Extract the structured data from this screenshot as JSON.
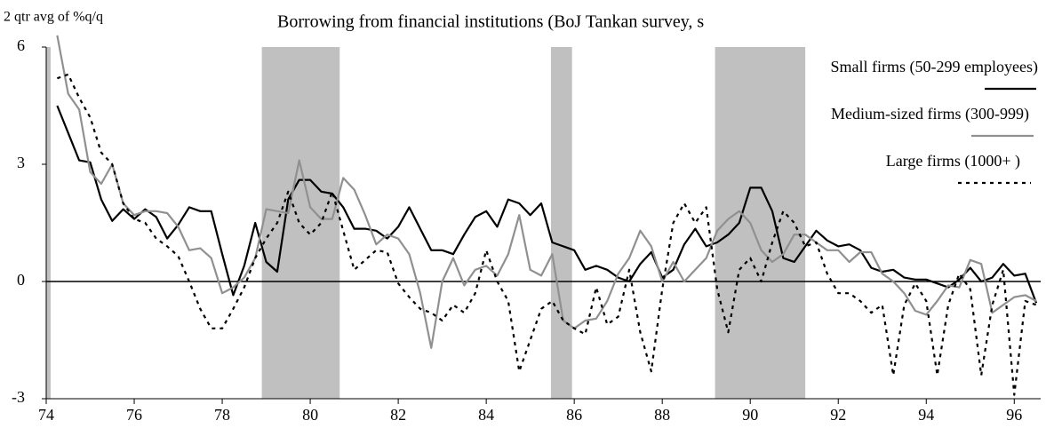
{
  "chart_data": {
    "type": "line",
    "title": "Borrowing from financial institutions (BoJ Tankan survey, s",
    "y_label": "2 qtr avg of %q/q",
    "x": [
      74.25,
      74.5,
      74.75,
      75,
      75.25,
      75.5,
      75.75,
      76,
      76.25,
      76.5,
      76.75,
      77,
      77.25,
      77.5,
      77.75,
      78,
      78.25,
      78.5,
      78.75,
      79,
      79.25,
      79.5,
      79.75,
      80,
      80.25,
      80.5,
      80.75,
      81,
      81.25,
      81.5,
      81.75,
      82,
      82.25,
      82.5,
      82.75,
      83,
      83.25,
      83.5,
      83.75,
      84,
      84.25,
      84.5,
      84.75,
      85,
      85.25,
      85.5,
      85.75,
      86,
      86.25,
      86.5,
      86.75,
      87,
      87.25,
      87.5,
      87.75,
      88,
      88.25,
      88.5,
      88.75,
      89,
      89.25,
      89.5,
      89.75,
      90,
      90.25,
      90.5,
      90.75,
      91,
      91.25,
      91.5,
      91.75,
      92,
      92.25,
      92.5,
      92.75,
      93,
      93.25,
      93.5,
      93.75,
      94,
      94.25,
      94.5,
      94.75,
      95,
      95.25,
      95.5,
      95.75,
      96,
      96.25,
      96.5
    ],
    "series": [
      {
        "name": "Small firms (50-299 employees)",
        "color": "#000000",
        "line_style": "solid",
        "values": [
          4.5,
          3.8,
          3.1,
          3.05,
          2.1,
          1.55,
          1.85,
          1.6,
          1.85,
          1.65,
          1.1,
          1.45,
          1.9,
          1.8,
          1.8,
          0.7,
          -0.35,
          0.4,
          1.5,
          0.5,
          0.25,
          2.1,
          2.6,
          2.6,
          2.3,
          2.25,
          1.9,
          1.35,
          1.35,
          1.3,
          1.1,
          1.4,
          1.9,
          1.35,
          0.8,
          0.8,
          0.7,
          1.2,
          1.65,
          1.8,
          1.4,
          2.1,
          2.0,
          1.7,
          2.0,
          1.0,
          0.9,
          0.8,
          0.3,
          0.4,
          0.3,
          0.1,
          0.0,
          0.45,
          0.75,
          0.1,
          0.3,
          0.95,
          1.35,
          0.9,
          1.0,
          1.2,
          1.5,
          2.4,
          2.4,
          1.8,
          0.6,
          0.5,
          0.9,
          1.3,
          1.05,
          0.9,
          0.95,
          0.8,
          0.35,
          0.25,
          0.3,
          0.1,
          0.05,
          0.05,
          -0.05,
          -0.15,
          0.05,
          0.35,
          0.0,
          0.1,
          0.45,
          0.15,
          0.2,
          -0.55
        ]
      },
      {
        "name": "Medium-sized firms (300-999)",
        "color": "#909090",
        "line_style": "solid",
        "values": [
          6.3,
          4.8,
          4.4,
          2.8,
          2.5,
          3.0,
          2.0,
          1.7,
          1.8,
          1.8,
          1.75,
          1.4,
          0.8,
          0.85,
          0.6,
          -0.3,
          -0.15,
          0.1,
          0.6,
          1.85,
          1.8,
          1.75,
          3.1,
          1.9,
          1.6,
          1.6,
          2.65,
          2.35,
          1.7,
          0.95,
          1.2,
          1.1,
          0.7,
          -0.3,
          -1.7,
          0.0,
          0.6,
          -0.1,
          0.3,
          0.4,
          0.15,
          0.7,
          1.7,
          0.3,
          0.15,
          0.7,
          -1.0,
          -1.2,
          -1.0,
          -0.95,
          -0.5,
          0.2,
          0.6,
          1.3,
          0.9,
          0.0,
          0.5,
          0.0,
          0.3,
          0.6,
          1.3,
          1.6,
          1.8,
          1.5,
          0.8,
          0.5,
          0.7,
          1.2,
          1.2,
          1.0,
          0.8,
          0.8,
          0.5,
          0.75,
          0.75,
          0.2,
          0.0,
          -0.3,
          -0.75,
          -0.85,
          -0.5,
          -0.1,
          -0.15,
          0.55,
          0.45,
          -0.8,
          -0.6,
          -0.4,
          -0.35,
          -0.5
        ]
      },
      {
        "name": "Large firms (1000+ )",
        "color": "#000000",
        "line_style": "dotted",
        "values": [
          5.2,
          5.3,
          4.7,
          4.2,
          3.3,
          3.0,
          2.0,
          1.6,
          1.5,
          1.1,
          0.9,
          0.65,
          0.0,
          -0.7,
          -1.2,
          -1.2,
          -0.7,
          -0.15,
          0.6,
          1.1,
          1.5,
          2.3,
          1.5,
          1.2,
          1.5,
          2.3,
          1.3,
          0.3,
          0.55,
          0.8,
          0.75,
          -0.05,
          -0.4,
          -0.7,
          -0.8,
          -1.0,
          -0.6,
          -0.8,
          -0.3,
          0.8,
          0.0,
          -0.5,
          -2.3,
          -1.5,
          -0.7,
          -0.5,
          -1.0,
          -1.2,
          -1.35,
          -0.15,
          -1.1,
          -0.9,
          0.3,
          -1.3,
          -2.3,
          -0.2,
          1.5,
          2.0,
          1.5,
          1.9,
          -0.2,
          -1.3,
          0.3,
          0.6,
          0.0,
          1.0,
          1.8,
          1.5,
          0.9,
          1.0,
          0.2,
          -0.3,
          -0.3,
          -0.5,
          -0.8,
          -0.6,
          -2.4,
          -0.6,
          -0.05,
          -0.5,
          -2.4,
          -0.6,
          0.2,
          -0.2,
          -2.4,
          -0.6,
          0.3,
          -2.9,
          -0.5,
          -0.6
        ]
      }
    ],
    "shading": [
      [
        74.0,
        74.1
      ],
      [
        78.9,
        80.67
      ],
      [
        85.47,
        85.95
      ],
      [
        89.2,
        91.25
      ]
    ],
    "shading_color": "#c0c0c0",
    "xlim": [
      74,
      96.6
    ],
    "ylim": [
      -3,
      6
    ],
    "xticks": [
      74,
      76,
      78,
      80,
      82,
      84,
      86,
      88,
      90,
      92,
      94,
      96
    ],
    "yticks": [
      -3,
      0,
      3,
      6
    ],
    "grid": false,
    "legend": "upper right"
  }
}
